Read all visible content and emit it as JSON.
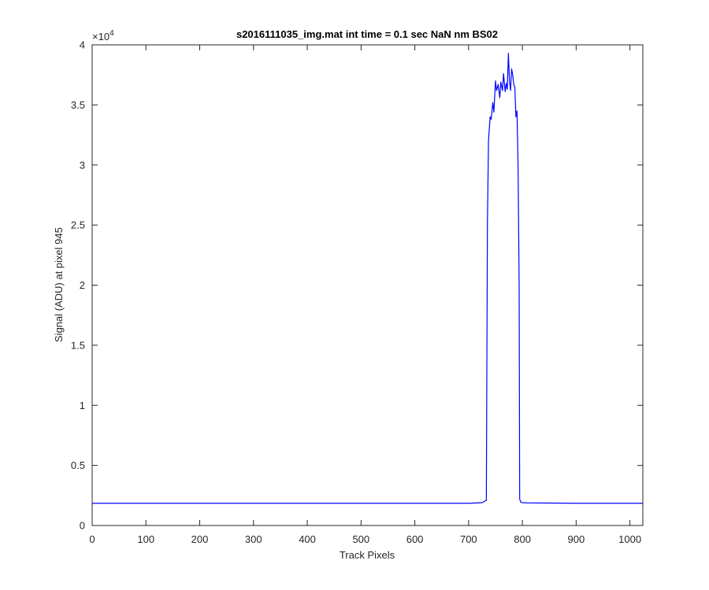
{
  "chart_data": {
    "type": "line",
    "title": "s2016111035_img.mat int time = 0.1 sec  NaN nm BS02",
    "xlabel": "Track Pixels",
    "ylabel": "Signal (ADU) at pixel 945",
    "xlim": [
      0,
      1024
    ],
    "ylim": [
      0,
      40000
    ],
    "x_ticks": [
      0,
      100,
      200,
      300,
      400,
      500,
      600,
      700,
      800,
      900,
      1000
    ],
    "y_ticks": [
      0,
      5000,
      10000,
      15000,
      20000,
      25000,
      30000,
      35000,
      40000
    ],
    "y_tick_labels": [
      "0",
      "0.5",
      "1",
      "1.5",
      "2",
      "2.5",
      "3",
      "3.5",
      "4"
    ],
    "y_exponent_label": "×10",
    "y_exponent_power": "4",
    "grid": false,
    "series": [
      {
        "color": "#0000ff",
        "x": [
          0,
          100,
          200,
          300,
          400,
          500,
          600,
          700,
          725,
          733,
          735,
          737,
          740,
          742,
          745,
          747,
          750,
          752,
          755,
          758,
          760,
          763,
          765,
          768,
          770,
          772,
          774,
          776,
          778,
          780,
          782,
          784,
          786,
          788,
          790,
          792,
          794,
          795,
          797,
          800,
          810,
          900,
          1024
        ],
        "y": [
          1850,
          1850,
          1850,
          1850,
          1850,
          1850,
          1850,
          1850,
          1900,
          2100,
          25000,
          32000,
          34000,
          33800,
          35200,
          34400,
          37000,
          36200,
          36700,
          35600,
          36900,
          36200,
          37600,
          36100,
          36800,
          36300,
          39300,
          37000,
          36200,
          38000,
          37500,
          36700,
          36500,
          34000,
          34500,
          30000,
          20000,
          2200,
          1950,
          1900,
          1880,
          1850,
          1850
        ]
      }
    ]
  }
}
